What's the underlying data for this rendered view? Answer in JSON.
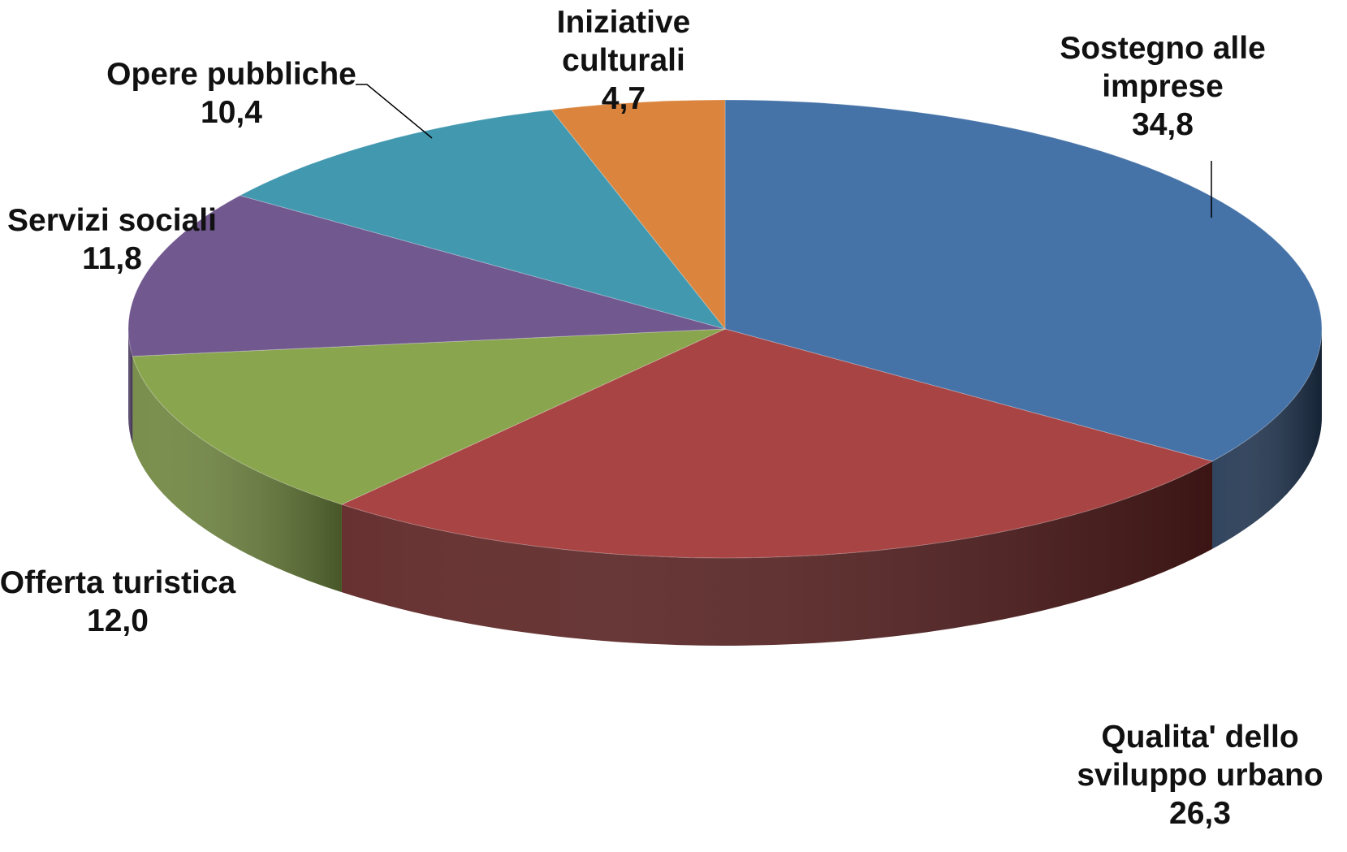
{
  "chart_data": {
    "type": "pie",
    "title": "",
    "style": "3d",
    "slices": [
      {
        "name": "Sostegno alle imprese",
        "value": 34.8,
        "value_label": "34,8",
        "color": "#4572A7",
        "side_color": "#1F3450",
        "label_lines": [
          "Sostegno alle",
          "imprese"
        ]
      },
      {
        "name": "Qualita' dello sviluppo urbano",
        "value": 26.3,
        "value_label": "26,3",
        "color": "#A84444",
        "side_color": "#5A1F1F",
        "label_lines": [
          "Qualita' dello",
          "sviluppo urbano"
        ]
      },
      {
        "name": "Offerta turistica",
        "value": 12.0,
        "value_label": "12,0",
        "color": "#89A54E",
        "side_color": "#6E853D",
        "label_lines": [
          "Offerta turistica"
        ]
      },
      {
        "name": "Servizi sociali",
        "value": 11.8,
        "value_label": "11,8",
        "color": "#71588F",
        "side_color": "#4E3D63",
        "label_lines": [
          "Servizi sociali"
        ]
      },
      {
        "name": "Opere pubbliche",
        "value": 10.4,
        "value_label": "10,4",
        "color": "#4198AF",
        "side_color": "#2C6878",
        "label_lines": [
          "Opere pubbliche"
        ]
      },
      {
        "name": "Iniziative culturali",
        "value": 4.7,
        "value_label": "4,7",
        "color": "#DB843D",
        "side_color": "#A35F28",
        "label_lines": [
          "Iniziative",
          "culturali"
        ]
      }
    ]
  }
}
